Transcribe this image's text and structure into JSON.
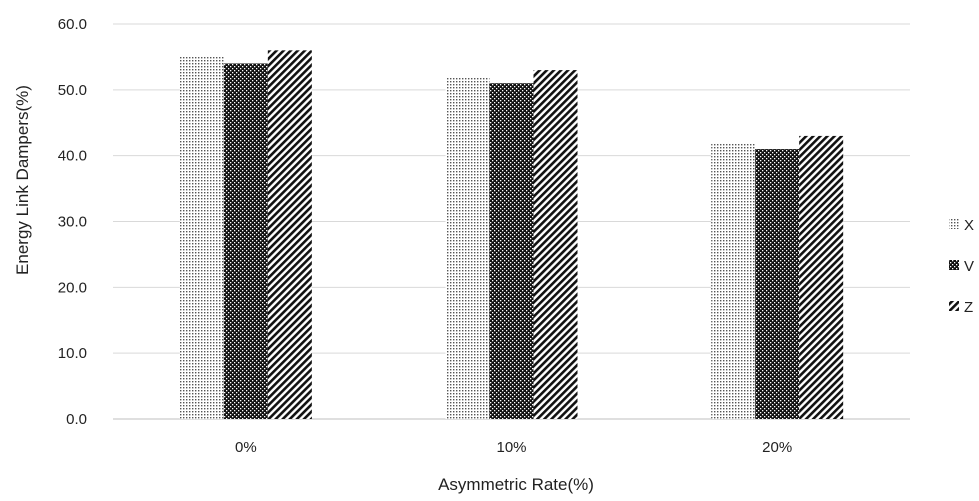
{
  "chart_data": {
    "type": "bar",
    "categories": [
      "0%",
      "10%",
      "20%"
    ],
    "series": [
      {
        "name": "X",
        "values": [
          55,
          52,
          42
        ],
        "pattern": "dots"
      },
      {
        "name": "V",
        "values": [
          54,
          51,
          41
        ],
        "pattern": "crosshatch"
      },
      {
        "name": "Z",
        "values": [
          56,
          53,
          43
        ],
        "pattern": "diagonal"
      }
    ],
    "title": "",
    "xlabel": "Asymmetric Rate(%)",
    "ylabel": "Energy Link Dampers(%)",
    "ylim": [
      0,
      60
    ],
    "yticks": [
      "0.0",
      "10.0",
      "20.0",
      "30.0",
      "40.0",
      "50.0",
      "60.0"
    ],
    "grid": true,
    "legend_position": "right"
  }
}
